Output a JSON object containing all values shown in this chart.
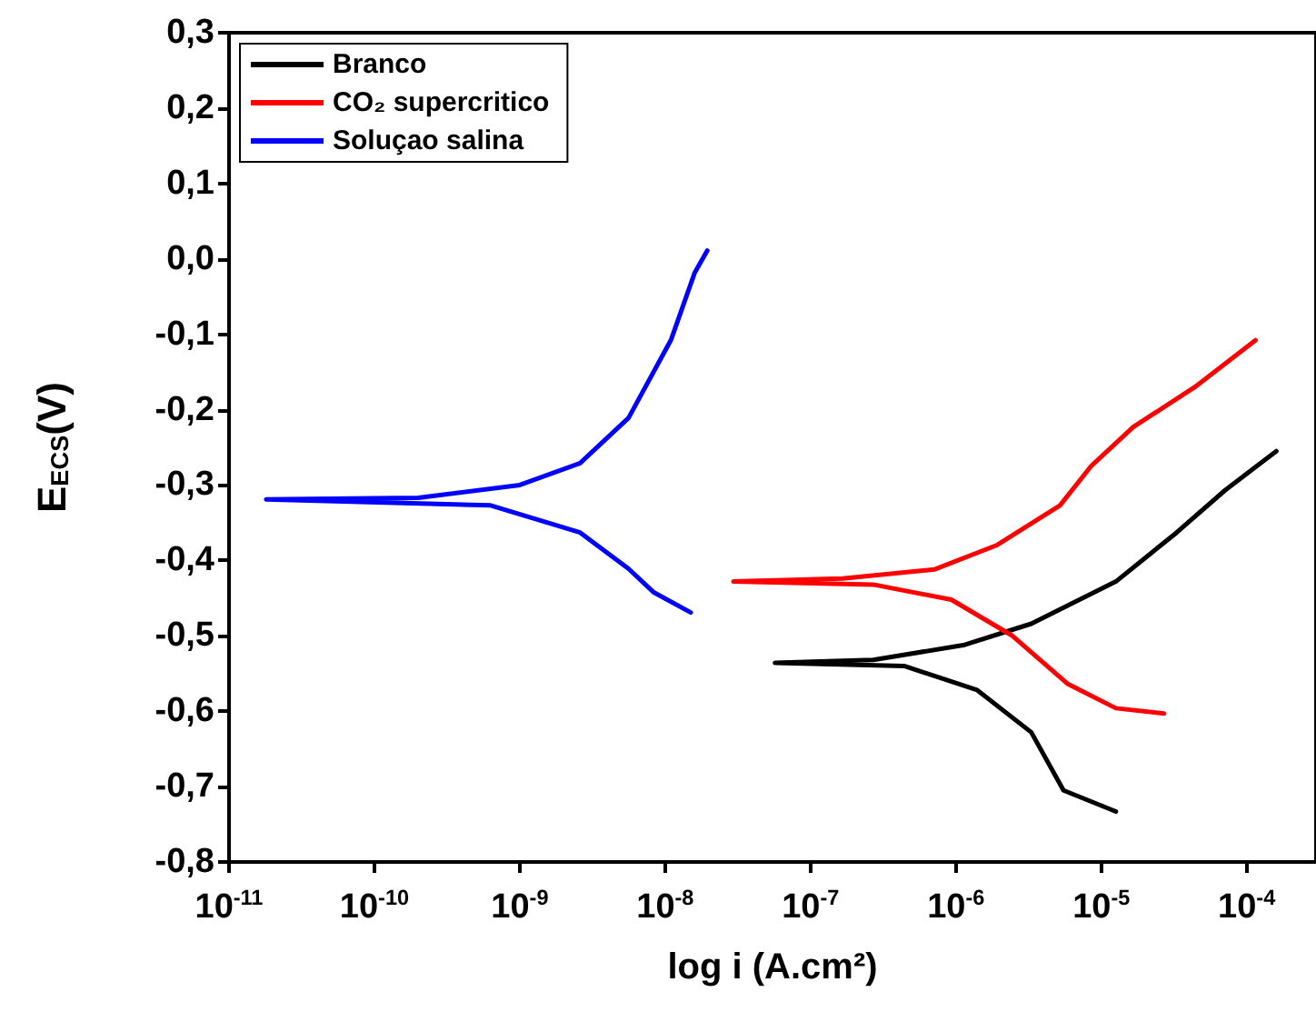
{
  "chart_data": {
    "type": "line",
    "xlabel": "log i (A.cm²)",
    "ylabel": "E$_{ECS}$(V)",
    "log": "x",
    "grid": false,
    "legend": "top left",
    "marker": "none",
    "line_style": "solid",
    "xlim": [
      1e-11,
      0.0003
    ],
    "xticks": [
      {
        "value": 1e-11,
        "label": "10$^{-11}$"
      },
      {
        "value": 1e-10,
        "label": "10$^{-10}$"
      },
      {
        "value": 1e-09,
        "label": "10$^{-9}$"
      },
      {
        "value": 1e-08,
        "label": "10$^{-8}$"
      },
      {
        "value": 1e-07,
        "label": "10$^{-7}$"
      },
      {
        "value": 1e-06,
        "label": "10$^{-6}$"
      },
      {
        "value": 1e-05,
        "label": "10$^{-5}$"
      },
      {
        "value": 0.0001,
        "label": "10$^{-4}$"
      }
    ],
    "ylim": [
      -0.8,
      0.3
    ],
    "yticks": [
      {
        "value": -0.8,
        "label": "-0,8"
      },
      {
        "value": -0.7,
        "label": "-0,7"
      },
      {
        "value": -0.6,
        "label": "-0,6"
      },
      {
        "value": -0.5,
        "label": "-0,5"
      },
      {
        "value": -0.4,
        "label": "-0,4"
      },
      {
        "value": -0.3,
        "label": "-0,3"
      },
      {
        "value": -0.2,
        "label": "-0,2"
      },
      {
        "value": -0.1,
        "label": "-0,1"
      },
      {
        "value": 0,
        "label": "0,0"
      },
      {
        "value": 0.1,
        "label": "0,1"
      },
      {
        "value": 0.2,
        "label": "0,2"
      },
      {
        "value": 0.3,
        "label": "0,3"
      }
    ],
    "series": [
      {
        "name": "Branco",
        "color": "#000000",
        "x": [
          0.00016,
          7.1e-05,
          3.3e-05,
          1.26e-05,
          3.3e-06,
          1.15e-06,
          2.7e-07,
          5.7e-08,
          4.4e-07,
          1.4e-06,
          3.3e-06,
          5.5e-06,
          1.26e-05
        ],
        "values": [
          -0.255,
          -0.307,
          -0.363,
          -0.428,
          -0.484,
          -0.512,
          -0.532,
          -0.536,
          -0.54,
          -0.572,
          -0.628,
          -0.705,
          -0.733
        ]
      },
      {
        "name": "CO₂ supercritico",
        "color": "#ff0000",
        "x": [
          0.000115,
          4.4e-05,
          1.66e-05,
          8.5e-06,
          5.2e-06,
          1.9e-06,
          7.1e-07,
          1.66e-07,
          2.95e-08,
          2.7e-07,
          9.3e-07,
          2.45e-06,
          5.9e-06,
          1.26e-05,
          2.7e-05
        ],
        "values": [
          -0.108,
          -0.17,
          -0.223,
          -0.275,
          -0.327,
          -0.38,
          -0.412,
          -0.424,
          -0.428,
          -0.432,
          -0.452,
          -0.5,
          -0.564,
          -0.596,
          -0.603
        ]
      },
      {
        "name": "Soluçao salina",
        "color": "#0000ff",
        "x": [
          1.95e-08,
          1.6e-08,
          1.1e-08,
          5.6e-09,
          2.6e-09,
          1e-09,
          2e-10,
          1.8e-11,
          6.3e-10,
          2.6e-09,
          5.6e-09,
          8.3e-09,
          1.5e-08
        ],
        "values": [
          0.011,
          -0.018,
          -0.107,
          -0.211,
          -0.271,
          -0.3,
          -0.317,
          -0.319,
          -0.327,
          -0.363,
          -0.411,
          -0.442,
          -0.469
        ]
      }
    ]
  }
}
